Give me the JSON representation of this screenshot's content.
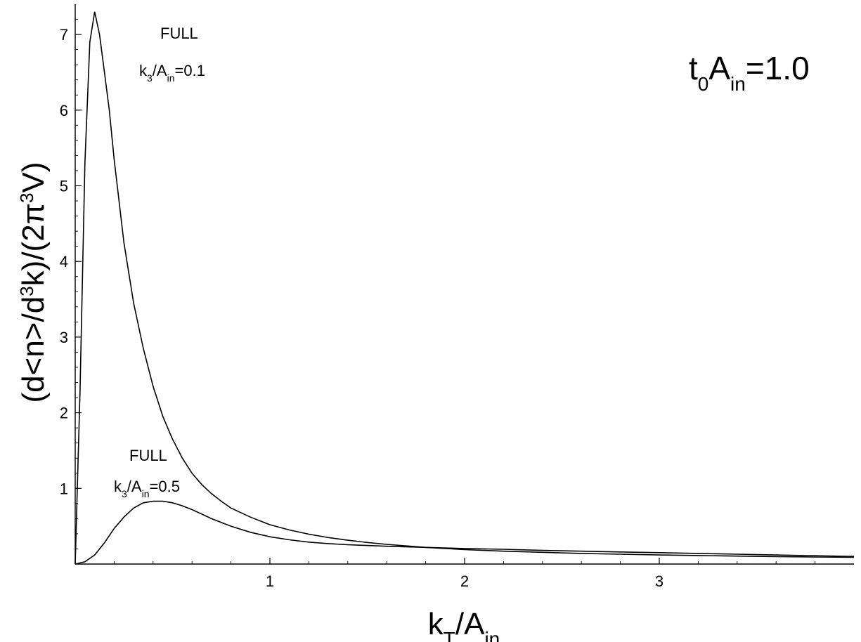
{
  "chart_data": {
    "type": "line",
    "xlim": [
      0,
      4
    ],
    "ylim": [
      0,
      7.4
    ],
    "grid": false,
    "x_ticks": [
      {
        "value": 1,
        "label": "1"
      },
      {
        "value": 2,
        "label": "2"
      },
      {
        "value": 3,
        "label": "3"
      }
    ],
    "y_ticks": [
      {
        "value": 1,
        "label": "1"
      },
      {
        "value": 2,
        "label": "2"
      },
      {
        "value": 3,
        "label": "3"
      },
      {
        "value": 4,
        "label": "4"
      },
      {
        "value": 5,
        "label": "5"
      },
      {
        "value": 6,
        "label": "6"
      },
      {
        "value": 7,
        "label": "7"
      }
    ],
    "x_minor_step": 0.2,
    "y_minor_step": 0.2,
    "xlabel": {
      "main": "k",
      "sub1": "T",
      "mid": "/A",
      "sub2": "in"
    },
    "ylabel": {
      "p1": "(d<n>/d",
      "sup1": "3",
      "p2": "k)/(2π",
      "sup2": "3",
      "p3": "V)"
    },
    "corner_label": {
      "main": "t",
      "sub1": "0",
      "mid": "A",
      "sub2": "in",
      "tail": "=1.0"
    },
    "series": [
      {
        "label_top": "FULL",
        "label_param": {
          "k": "k",
          "sub1": "3",
          "mid": "/A",
          "sub2": "in",
          "tail": "=0.1"
        },
        "x": [
          0,
          0.025,
          0.05,
          0.075,
          0.1,
          0.125,
          0.15,
          0.175,
          0.2,
          0.25,
          0.3,
          0.35,
          0.4,
          0.45,
          0.5,
          0.55,
          0.6,
          0.65,
          0.7,
          0.75,
          0.8,
          0.9,
          1.0,
          1.1,
          1.2,
          1.3,
          1.4,
          1.5,
          1.6,
          1.8,
          2.0,
          2.2,
          2.4,
          2.6,
          2.8,
          3.0,
          3.2,
          3.4,
          3.6,
          3.8,
          4.0
        ],
        "y": [
          0,
          2.3,
          5.3,
          6.9,
          7.3,
          7.0,
          6.5,
          6.0,
          5.35,
          4.25,
          3.45,
          2.85,
          2.35,
          1.95,
          1.65,
          1.4,
          1.2,
          1.05,
          0.93,
          0.83,
          0.74,
          0.62,
          0.52,
          0.45,
          0.395,
          0.35,
          0.315,
          0.285,
          0.26,
          0.22,
          0.19,
          0.17,
          0.155,
          0.14,
          0.13,
          0.12,
          0.112,
          0.105,
          0.098,
          0.093,
          0.088
        ]
      },
      {
        "label_top": "FULL",
        "label_param": {
          "k": "k",
          "sub1": "3",
          "mid": "/A",
          "sub2": "in",
          "tail": "=0.5"
        },
        "x": [
          0,
          0.05,
          0.1,
          0.15,
          0.2,
          0.25,
          0.3,
          0.35,
          0.4,
          0.45,
          0.5,
          0.55,
          0.6,
          0.65,
          0.7,
          0.8,
          0.9,
          1.0,
          1.1,
          1.2,
          1.3,
          1.4,
          1.5,
          1.6,
          1.8,
          2.0,
          2.2,
          2.4,
          2.6,
          2.8,
          3.0,
          3.2,
          3.4,
          3.6,
          3.8,
          4.0
        ],
        "y": [
          0,
          0.03,
          0.12,
          0.28,
          0.47,
          0.62,
          0.74,
          0.81,
          0.83,
          0.83,
          0.81,
          0.77,
          0.72,
          0.66,
          0.6,
          0.5,
          0.42,
          0.36,
          0.32,
          0.29,
          0.27,
          0.255,
          0.245,
          0.235,
          0.22,
          0.205,
          0.195,
          0.18,
          0.17,
          0.16,
          0.15,
          0.14,
          0.13,
          0.12,
          0.11,
          0.1
        ]
      }
    ]
  }
}
